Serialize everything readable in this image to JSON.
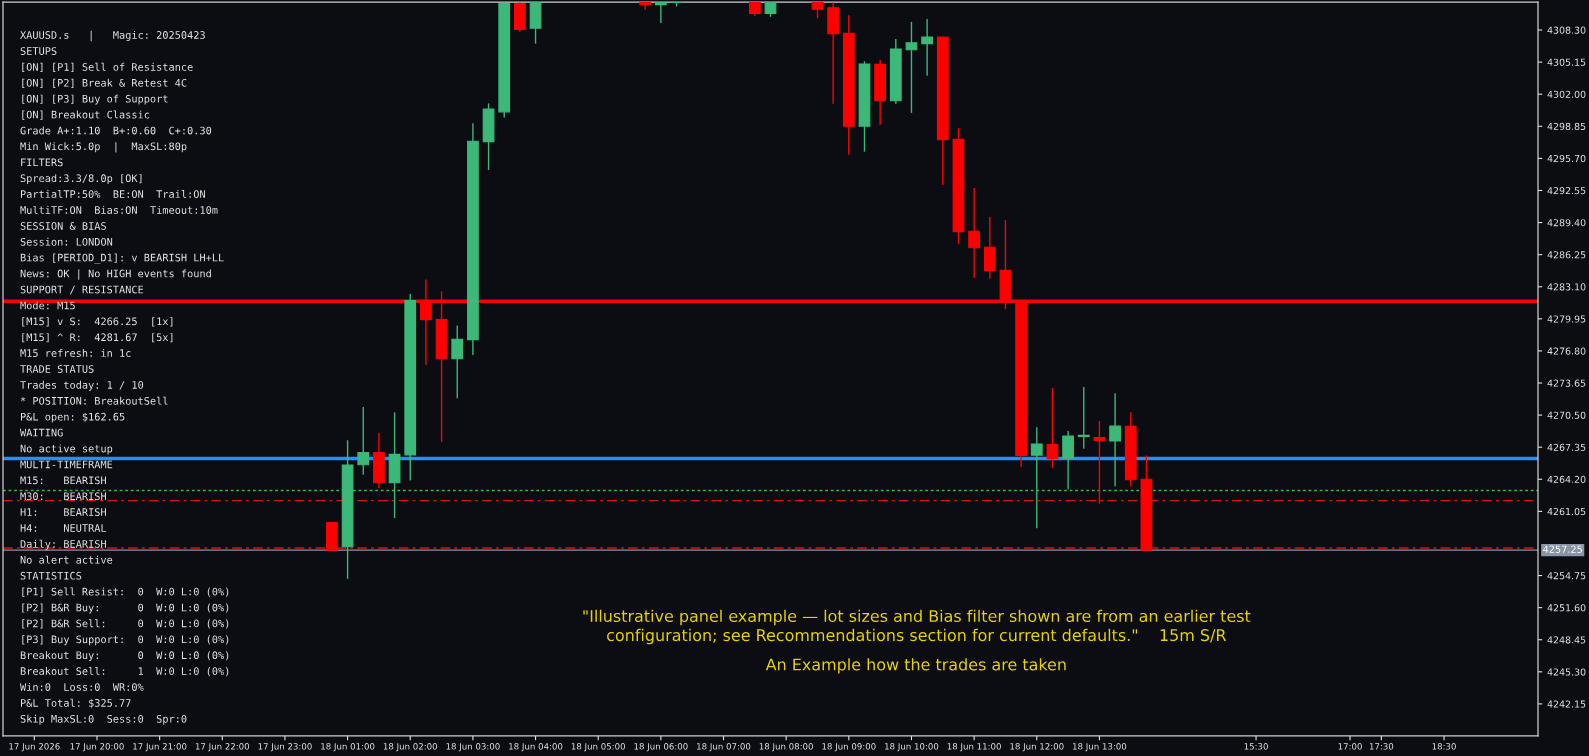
{
  "chart_data": {
    "type": "candlestick",
    "title": "\"Illustrative panel example — lot sizes and Bias filter shown are from an earlier test\nconfiguration; see Recommendations section for current defaults.\"    15m S/R",
    "subtitle": "An Example how the trades are taken",
    "categories": [
      "17 Jun 2026",
      null,
      null,
      null,
      "17 Jun 20:00",
      null,
      null,
      null,
      "17 Jun 21:00",
      null,
      null,
      null,
      "17 Jun 22:00",
      null,
      null,
      null,
      "17 Jun 23:00",
      null,
      null,
      null,
      "18 Jun 01:00",
      null,
      null,
      null,
      "18 Jun 02:00",
      null,
      null,
      null,
      "18 Jun 03:00",
      null,
      null,
      null,
      "18 Jun 04:00",
      null,
      null,
      null,
      "18 Jun 05:00",
      null,
      null,
      null,
      "18 Jun 06:00",
      null,
      null,
      null,
      "18 Jun 07:00",
      null,
      null,
      null,
      "18 Jun 08:00",
      null,
      null,
      null,
      "18 Jun 09:00",
      null,
      null,
      null,
      "18 Jun 10:00",
      null,
      null,
      null,
      "18 Jun 11:00",
      null,
      null,
      null,
      "18 Jun 12:00",
      null,
      null,
      null,
      "18 Jun 13:00",
      null,
      null,
      null,
      null,
      null,
      null,
      null,
      null,
      null,
      "15:30",
      null,
      null,
      null,
      null,
      null,
      "17:00",
      null,
      "17:30",
      null,
      null,
      null,
      "18:30",
      null,
      null,
      null,
      null,
      null,
      null
    ],
    "ohlc": [
      null,
      null,
      null,
      null,
      null,
      null,
      null,
      null,
      null,
      null,
      null,
      null,
      null,
      null,
      null,
      null,
      null,
      null,
      null,
      [
        4259.95,
        4259.95,
        4257.25,
        4257.25
      ],
      [
        4257.58,
        4268.03,
        4254.43,
        4265.59
      ],
      [
        4265.63,
        4271.3,
        4264.65,
        4266.83
      ],
      [
        4266.83,
        4268.75,
        4263.34,
        4263.86
      ],
      [
        4263.86,
        4270.77,
        4260.4,
        4266.64
      ],
      [
        4266.6,
        4282.39,
        4264.09,
        4281.75
      ],
      [
        4281.75,
        4283.81,
        4275.43,
        4279.87
      ],
      [
        4279.87,
        4282.65,
        4267.88,
        4276.03
      ],
      [
        4276.03,
        4279.3,
        4272.16,
        4277.95
      ],
      [
        4277.91,
        4299.15,
        4276.41,
        4297.38
      ],
      [
        4297.34,
        4301.1,
        4294.56,
        4300.54
      ],
      [
        4300.27,
        4311.0,
        4299.71,
        4310.9
      ],
      [
        4310.9,
        4311.0,
        4308.13,
        4308.35
      ],
      [
        4308.47,
        4311.0,
        4306.96,
        4311.0
      ],
      null,
      null,
      null,
      null,
      null,
      null,
      [
        4311.0,
        4311.0,
        4310.3,
        4310.79
      ],
      [
        4310.79,
        4311.0,
        4308.99,
        4311.0
      ],
      [
        4311.0,
        4311.0,
        4310.61,
        4311.0
      ],
      null,
      null,
      null,
      null,
      [
        4311.0,
        4311.0,
        4309.67,
        4309.93
      ],
      [
        4309.93,
        4311.0,
        4309.59,
        4311.0
      ],
      null,
      null,
      [
        4311.0,
        4311.0,
        4309.44,
        4310.34
      ],
      [
        4310.49,
        4311.0,
        4301.06,
        4307.94
      ],
      [
        4307.98,
        4309.74,
        4296.06,
        4298.85
      ],
      [
        4298.85,
        4305.23,
        4296.36,
        4304.97
      ],
      [
        4304.93,
        4305.35,
        4299.0,
        4301.36
      ],
      [
        4301.36,
        4307.41,
        4301.06,
        4306.44
      ],
      [
        4306.36,
        4309.1,
        4300.16,
        4307.04
      ],
      [
        4306.96,
        4309.37,
        4303.8,
        4307.6
      ],
      [
        4307.6,
        4307.6,
        4293.09,
        4297.53
      ],
      [
        4297.57,
        4298.66,
        4287.31,
        4288.51
      ],
      [
        4288.55,
        4292.8,
        4283.96,
        4286.93
      ],
      [
        4286.97,
        4289.94,
        4283.89,
        4284.68
      ],
      [
        4284.72,
        4289.64,
        4280.92,
        4281.56
      ],
      [
        4281.63,
        4281.63,
        4265.4,
        4266.53
      ],
      [
        4266.57,
        4269.31,
        4259.39,
        4267.66
      ],
      [
        4267.62,
        4273.14,
        4265.32,
        4266.23
      ],
      [
        4266.27,
        4268.93,
        4263.22,
        4268.44
      ],
      [
        4268.41,
        4273.26,
        4267.2,
        4268.52
      ],
      [
        4268.3,
        4269.91,
        4261.79,
        4268.0
      ],
      [
        4267.96,
        4272.65,
        4263.52,
        4269.42
      ],
      [
        4269.39,
        4270.77,
        4263.52,
        4264.16
      ],
      [
        4264.2,
        4266.53,
        4257.25,
        4257.25
      ],
      null,
      null,
      null,
      null,
      null,
      null,
      null,
      null,
      null,
      null,
      null,
      null,
      null,
      null,
      null,
      null,
      null,
      null,
      null,
      null,
      null,
      null,
      null,
      null,
      null
    ],
    "colors": [
      null,
      null,
      null,
      null,
      null,
      null,
      null,
      null,
      null,
      null,
      null,
      null,
      null,
      null,
      null,
      null,
      null,
      null,
      null,
      "#ff0000",
      "#3cb878",
      "#3cb878",
      "#ff0000",
      "#3cb878",
      "#3cb878",
      "#ff0000",
      "#ff0000",
      "#3cb878",
      "#3cb878",
      "#3cb878",
      "#3cb878",
      "#ff0000",
      "#3cb878",
      null,
      null,
      null,
      null,
      null,
      null,
      "#ff0000",
      "#3cb878",
      "#3cb878",
      null,
      null,
      null,
      null,
      "#ff0000",
      "#3cb878",
      null,
      null,
      "#ff0000",
      "#ff0000",
      "#ff0000",
      "#3cb878",
      "#ff0000",
      "#3cb878",
      "#3cb878",
      "#3cb878",
      "#ff0000",
      "#ff0000",
      "#ff0000",
      "#ff0000",
      "#ff0000",
      "#ff0000",
      "#3cb878",
      "#ff0000",
      "#3cb878",
      "#3cb878",
      "#ff0000",
      "#3cb878",
      "#ff0000",
      "#ff0000",
      null,
      null,
      null,
      null,
      null,
      null,
      null,
      null,
      null,
      null,
      null,
      null,
      null,
      null,
      null,
      null,
      null,
      null,
      null,
      null,
      null,
      null,
      null,
      null,
      null
    ],
    "ylim": [
      4239.0,
      4311.05
    ],
    "yticks": [
      {
        "value": 4308.3,
        "label": "4308.30"
      },
      {
        "value": 4305.15,
        "label": "4305.15"
      },
      {
        "value": 4302.0,
        "label": "4302.00"
      },
      {
        "value": 4298.85,
        "label": "4298.85"
      },
      {
        "value": 4295.7,
        "label": "4295.70"
      },
      {
        "value": 4292.55,
        "label": "4292.55"
      },
      {
        "value": 4289.4,
        "label": "4289.40"
      },
      {
        "value": 4286.25,
        "label": "4286.25"
      },
      {
        "value": 4283.1,
        "label": "4283.10"
      },
      {
        "value": 4279.95,
        "label": "4279.95"
      },
      {
        "value": 4276.8,
        "label": "4276.80"
      },
      {
        "value": 4273.65,
        "label": "4273.65"
      },
      {
        "value": 4270.5,
        "label": "4270.50"
      },
      {
        "value": 4267.35,
        "label": "4267.35"
      },
      {
        "value": 4264.2,
        "label": "4264.20"
      },
      {
        "value": 4261.05,
        "label": "4261.05"
      },
      {
        "value": 4254.75,
        "label": "4254.75"
      },
      {
        "value": 4251.6,
        "label": "4251.60"
      },
      {
        "value": 4248.45,
        "label": "4248.45"
      },
      {
        "value": 4245.3,
        "label": "4245.30"
      },
      {
        "value": 4242.15,
        "label": "4242.15"
      }
    ],
    "ref_lines": [
      {
        "axis": "y",
        "value": 4281.67,
        "color": "#ff0000",
        "line_style": "solid"
      },
      {
        "axis": "y",
        "value": 4266.25,
        "color": "#1e90ff",
        "line_style": "solid"
      },
      {
        "axis": "y",
        "value": 4263.1,
        "color": "#2fbf2f",
        "line_style": "dotted"
      },
      {
        "axis": "y",
        "value": 4262.1,
        "color": "#e01010",
        "line_style": "dashed"
      },
      {
        "axis": "y",
        "value": 4257.45,
        "color": "#e01010",
        "line_style": "dashed"
      },
      {
        "axis": "y",
        "value": 4257.25,
        "label": "4257.25",
        "color": "#8a96a6",
        "line_style": "solid"
      }
    ],
    "grid": false,
    "legend": false,
    "annotations": [
      "XAUUSD.s   |   Magic: 20250423",
      "SETUPS",
      "[ON] [P1] Sell of Resistance",
      "[ON] [P2] Break & Retest 4C",
      "[ON] [P3] Buy of Support",
      "[ON] Breakout Classic",
      "Grade A+:1.10  B+:0.60  C+:0.30",
      "Min Wick:5.0p  |  MaxSL:80p",
      "FILTERS",
      "Spread:3.3/8.0p [OK]",
      "PartialTP:50%  BE:ON  Trail:ON",
      "MultiTF:ON  Bias:ON  Timeout:10m",
      "SESSION & BIAS",
      "Session: LONDON",
      "Bias [PERIOD_D1]: v BEARISH LH+LL",
      "News: OK | No HIGH events found",
      "SUPPORT / RESISTANCE",
      "Mode: M15",
      "[M15] v S:  4266.25  [1x]",
      "[M15] ^ R:  4281.67  [5x]",
      "M15 refresh: in 1c",
      "TRADE STATUS",
      "Trades today: 1 / 10",
      "* POSITION: BreakoutSell",
      "P&L open: $162.65",
      "WAITING",
      "No active setup",
      "MULTI-TIMEFRAME",
      "M15:   BEARISH",
      "M30:   BEARISH",
      "H1:    BEARISH",
      "H4:    NEUTRAL",
      "Daily: BEARISH",
      "No alert active",
      "STATISTICS",
      "[P1] Sell Resist:  0  W:0 L:0 (0%)",
      "[P2] B&R Buy:      0  W:0 L:0 (0%)",
      "[P2] B&R Sell:     0  W:0 L:0 (0%)",
      "[P3] Buy Support:  0  W:0 L:0 (0%)",
      "Breakout Buy:      0  W:0 L:0 (0%)",
      "Breakout Sell:     1  W:0 L:0 (0%)",
      "Win:0  Loss:0  WR:0%",
      "P&L Total: $325.77",
      "Skip MaxSL:0  Sess:0  Spr:0"
    ]
  }
}
